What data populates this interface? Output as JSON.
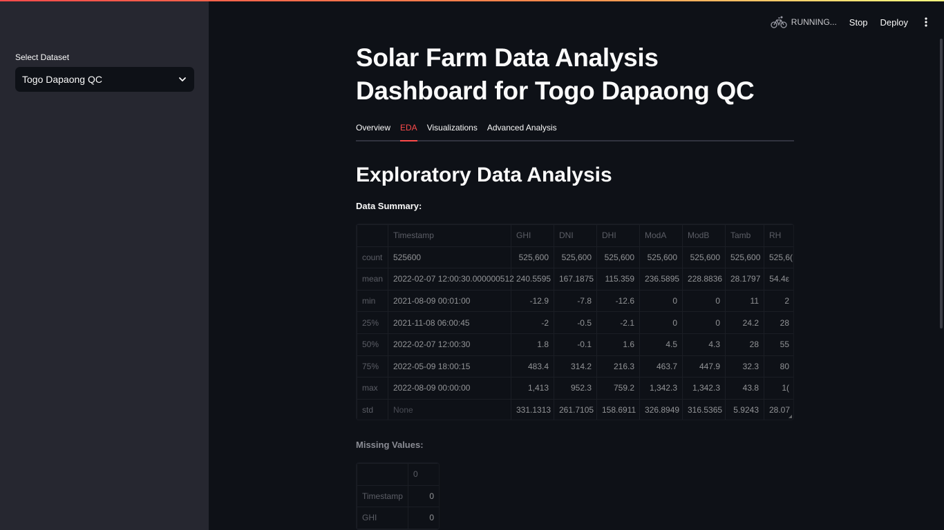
{
  "sidebar": {
    "select_label": "Select Dataset",
    "selected_value": "Togo Dapaong QC"
  },
  "header": {
    "status": "RUNNING...",
    "stop_label": "Stop",
    "deploy_label": "Deploy"
  },
  "main": {
    "title": "Solar Farm Data Analysis Dashboard for Togo Dapaong QC",
    "tabs": [
      {
        "label": "Overview",
        "active": false
      },
      {
        "label": "EDA",
        "active": true
      },
      {
        "label": "Visualizations",
        "active": false
      },
      {
        "label": "Advanced Analysis",
        "active": false
      }
    ],
    "section_title": "Exploratory Data Analysis",
    "summary_label": "Data Summary:",
    "summary_table": {
      "columns": [
        "",
        "Timestamp",
        "GHI",
        "DNI",
        "DHI",
        "ModA",
        "ModB",
        "Tamb",
        "RH"
      ],
      "rows": [
        [
          "count",
          "525600",
          "525,600",
          "525,600",
          "525,600",
          "525,600",
          "525,600",
          "525,600",
          "525,6("
        ],
        [
          "mean",
          "2022-02-07 12:00:30.000000512",
          "240.5595",
          "167.1875",
          "115.359",
          "236.5895",
          "228.8836",
          "28.1797",
          "54.4ε"
        ],
        [
          "min",
          "2021-08-09 00:01:00",
          "-12.9",
          "-7.8",
          "-12.6",
          "0",
          "0",
          "11",
          "2"
        ],
        [
          "25%",
          "2021-11-08 06:00:45",
          "-2",
          "-0.5",
          "-2.1",
          "0",
          "0",
          "24.2",
          "28"
        ],
        [
          "50%",
          "2022-02-07 12:00:30",
          "1.8",
          "-0.1",
          "1.6",
          "4.5",
          "4.3",
          "28",
          "55"
        ],
        [
          "75%",
          "2022-05-09 18:00:15",
          "483.4",
          "314.2",
          "216.3",
          "463.7",
          "447.9",
          "32.3",
          "80"
        ],
        [
          "max",
          "2022-08-09 00:00:00",
          "1,413",
          "952.3",
          "759.2",
          "1,342.3",
          "1,342.3",
          "43.8",
          "1("
        ],
        [
          "std",
          "None",
          "331.1313",
          "261.7105",
          "158.6911",
          "326.8949",
          "316.5365",
          "5.9243",
          "28.07"
        ]
      ]
    },
    "missing_label": "Missing Values:",
    "missing_table": {
      "columns": [
        "",
        "0"
      ],
      "rows": [
        [
          "Timestamp",
          "0"
        ],
        [
          "GHI",
          "0"
        ]
      ]
    }
  },
  "colors": {
    "accent": "#ff4b4b",
    "background": "#0e1117",
    "sidebar": "#262730"
  }
}
